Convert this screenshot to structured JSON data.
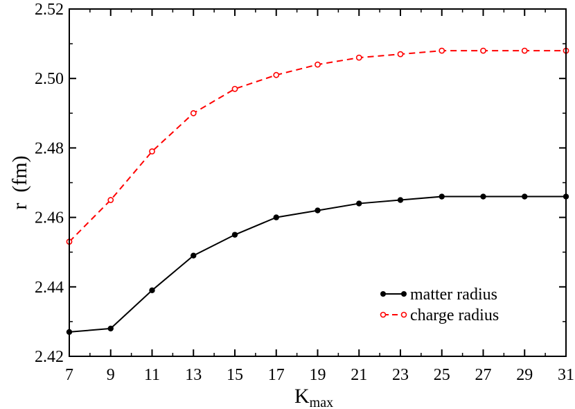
{
  "chart_data": {
    "type": "line",
    "title": "",
    "xlabel": "K",
    "xlabel_sub": "max",
    "ylabel": "r  (fm)",
    "xlim": [
      7,
      31
    ],
    "ylim": [
      2.42,
      2.52
    ],
    "x_ticks": [
      7,
      9,
      11,
      13,
      15,
      17,
      19,
      21,
      23,
      25,
      27,
      29,
      31
    ],
    "y_ticks": [
      2.42,
      2.44,
      2.46,
      2.48,
      2.5,
      2.52
    ],
    "y_tick_labels": [
      "2.42",
      "2.44",
      "2.46",
      "2.48",
      "2.50",
      "2.52"
    ],
    "grid": false,
    "legend_position": "bottom-right",
    "x": [
      7,
      9,
      11,
      13,
      15,
      17,
      19,
      21,
      23,
      25,
      27,
      29,
      31
    ],
    "series": [
      {
        "name": "matter radius",
        "color": "#000000",
        "line_style": "solid",
        "marker": "filled-circle",
        "values": [
          2.427,
          2.428,
          2.439,
          2.449,
          2.455,
          2.46,
          2.462,
          2.464,
          2.465,
          2.466,
          2.466,
          2.466,
          2.466
        ]
      },
      {
        "name": "charge radius",
        "color": "#ff0000",
        "line_style": "dashed",
        "marker": "open-circle",
        "values": [
          2.453,
          2.465,
          2.479,
          2.49,
          2.497,
          2.501,
          2.504,
          2.506,
          2.507,
          2.508,
          2.508,
          2.508,
          2.508
        ]
      }
    ]
  }
}
